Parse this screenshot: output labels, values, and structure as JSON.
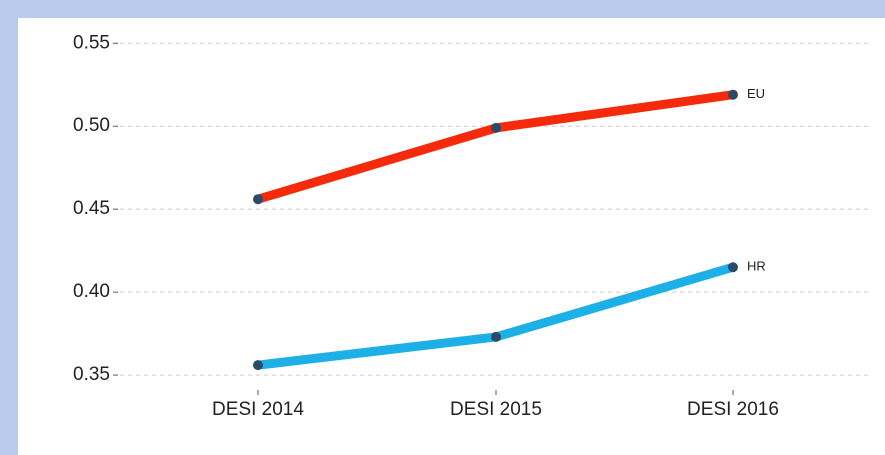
{
  "chart_data": {
    "type": "line",
    "categories": [
      "DESI 2014",
      "DESI 2015",
      "DESI 2016"
    ],
    "series": [
      {
        "name": "EU",
        "color": "#f52a0a",
        "values": [
          0.456,
          0.499,
          0.519
        ]
      },
      {
        "name": "HR",
        "color": "#1cb0e6",
        "values": [
          0.356,
          0.373,
          0.415
        ]
      }
    ],
    "ylim": [
      0.341,
      0.558
    ],
    "yticks": [
      0.35,
      {
        "value": 0.4,
        "label": "0.40"
      },
      0.45,
      {
        "value": 0.5,
        "label": "0.50"
      },
      0.55
    ],
    "grid": true
  }
}
